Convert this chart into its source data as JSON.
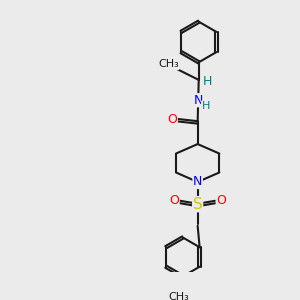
{
  "bg_color": "#ebebeb",
  "bond_color": "#1a1a1a",
  "bond_width": 1.5,
  "atom_colors": {
    "N": "#0000ff",
    "O": "#ff0000",
    "S": "#cccc00",
    "C": "#1a1a1a",
    "H": "#008080"
  },
  "font_size": 9,
  "figsize": [
    3.0,
    3.0
  ],
  "dpi": 100
}
